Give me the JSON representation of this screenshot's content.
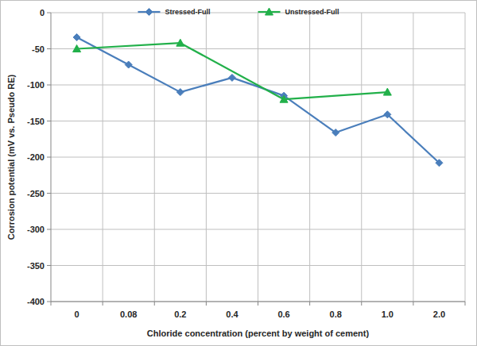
{
  "chart_data": {
    "type": "line",
    "x_label": "Chloride concentration (percent by weight of cement)",
    "y_label": "Corrosion potential (mV vs. Pseudo RE)",
    "categories": [
      "0",
      "0.08",
      "0.2",
      "0.4",
      "0.6",
      "0.8",
      "1.0",
      "2.0"
    ],
    "series": [
      {
        "name": "Stressed-Full",
        "color": "#4a7ebb",
        "marker": "diamond",
        "line_style": "solid",
        "values": [
          -34,
          -72,
          -110,
          -90,
          -115,
          -166,
          -141,
          -208
        ]
      },
      {
        "name": "Unstressed-Full",
        "color": "#22b04a",
        "marker": "triangle",
        "line_style": "solid",
        "values": [
          -50,
          null,
          -42,
          null,
          -120,
          null,
          -110,
          null
        ]
      }
    ],
    "ylim": [
      -400,
      0
    ],
    "yticks": [
      -400,
      -350,
      -300,
      -250,
      -200,
      -150,
      -100,
      -50,
      0
    ],
    "grid": true,
    "legend": "top"
  }
}
